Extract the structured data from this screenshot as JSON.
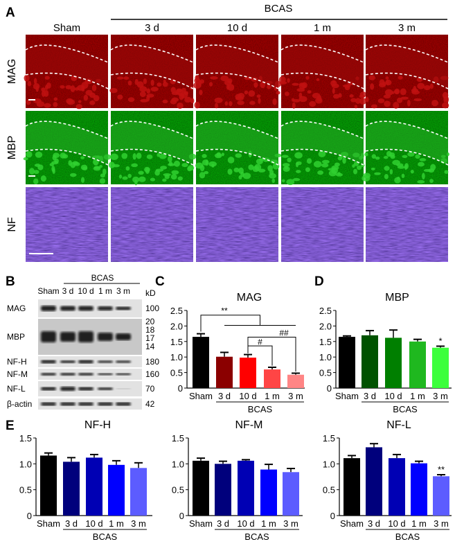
{
  "panel_a": {
    "letter": "A",
    "group_label": "BCAS",
    "columns": [
      "Sham",
      "3 d",
      "10 d",
      "1 m",
      "3 m"
    ],
    "rows": [
      "MAG",
      "MBP",
      "NF"
    ]
  },
  "panel_b": {
    "letter": "B",
    "group_label": "BCAS",
    "lanes": [
      "Sham",
      "3 d",
      "10 d",
      "1 m",
      "3 m"
    ],
    "unit": "kD",
    "blots": [
      {
        "label": "MAG",
        "kd": [
          "100"
        ]
      },
      {
        "label": "MBP",
        "kd": [
          "20",
          "18",
          "17",
          "14"
        ]
      },
      {
        "label": "NF-H",
        "kd": [
          "180"
        ]
      },
      {
        "label": "NF-M",
        "kd": [
          "160"
        ]
      },
      {
        "label": "NF-L",
        "kd": [
          "70"
        ]
      },
      {
        "label": "β-actin",
        "kd": [
          "42"
        ]
      }
    ]
  },
  "colors": {
    "mag": [
      "#000000",
      "#8b0000",
      "#ff0000",
      "#ff4545",
      "#ff8585"
    ],
    "mbp": [
      "#000000",
      "#005200",
      "#007f00",
      "#1fb81f",
      "#3cff3c"
    ],
    "nf": [
      "#000000",
      "#00007c",
      "#0000b4",
      "#0000ff",
      "#5c5cff"
    ]
  },
  "chart_data": [
    {
      "id": "C",
      "letter": "C",
      "type": "bar",
      "title": "MAG",
      "categories": [
        "Sham",
        "3 d",
        "10 d",
        "1 m",
        "3 m"
      ],
      "group_label": "BCAS",
      "values": [
        1.65,
        1.01,
        0.98,
        0.6,
        0.43
      ],
      "errors": [
        0.1,
        0.14,
        0.1,
        0.07,
        0.05
      ],
      "ylim": [
        0,
        2.5
      ],
      "yticks": [
        "0",
        "0.5",
        "1.0",
        "1.5",
        "2.0",
        "2.5"
      ],
      "marks": [
        "",
        "",
        "",
        "",
        ""
      ],
      "annotations": [
        "**",
        "#",
        "##"
      ]
    },
    {
      "id": "D",
      "letter": "D",
      "type": "bar",
      "title": "MBP",
      "categories": [
        "Sham",
        "3 d",
        "10 d",
        "1 m",
        "3 m"
      ],
      "group_label": "BCAS",
      "values": [
        1.65,
        1.7,
        1.62,
        1.5,
        1.3
      ],
      "errors": [
        0.03,
        0.15,
        0.25,
        0.07,
        0.05
      ],
      "ylim": [
        0,
        2.5
      ],
      "yticks": [
        "0",
        "0.5",
        "1.0",
        "1.5",
        "2.0",
        "2.5"
      ],
      "marks": [
        "",
        "",
        "",
        "",
        "*"
      ]
    },
    {
      "id": "E1",
      "letter": "E",
      "type": "bar",
      "title": "NF-H",
      "categories": [
        "Sham",
        "3 d",
        "10 d",
        "1 m",
        "3 m"
      ],
      "group_label": "BCAS",
      "values": [
        1.16,
        1.04,
        1.12,
        0.98,
        0.92
      ],
      "errors": [
        0.05,
        0.08,
        0.06,
        0.08,
        0.1
      ],
      "ylim": [
        0,
        1.5
      ],
      "yticks": [
        "0",
        "0.5",
        "1.0",
        "1.5"
      ],
      "marks": [
        "",
        "",
        "",
        "",
        ""
      ]
    },
    {
      "id": "E2",
      "letter": "",
      "type": "bar",
      "title": "NF-M",
      "categories": [
        "Sham",
        "3 d",
        "10 d",
        "1 m",
        "3 m"
      ],
      "group_label": "BCAS",
      "values": [
        1.06,
        1.0,
        1.06,
        0.89,
        0.84
      ],
      "errors": [
        0.05,
        0.05,
        0.02,
        0.1,
        0.07
      ],
      "ylim": [
        0,
        1.5
      ],
      "yticks": [
        "0",
        "0.5",
        "1.0",
        "1.5"
      ],
      "marks": [
        "",
        "",
        "",
        "",
        ""
      ]
    },
    {
      "id": "E3",
      "letter": "",
      "type": "bar",
      "title": "NF-L",
      "categories": [
        "Sham",
        "3 d",
        "10 d",
        "1 m",
        "3 m"
      ],
      "group_label": "BCAS",
      "values": [
        1.11,
        1.32,
        1.11,
        1.01,
        0.76
      ],
      "errors": [
        0.05,
        0.07,
        0.07,
        0.04,
        0.03
      ],
      "ylim": [
        0,
        1.5
      ],
      "yticks": [
        "0",
        "0.5",
        "1.0",
        "1.5"
      ],
      "marks": [
        "",
        "",
        "",
        "",
        "**"
      ]
    }
  ]
}
